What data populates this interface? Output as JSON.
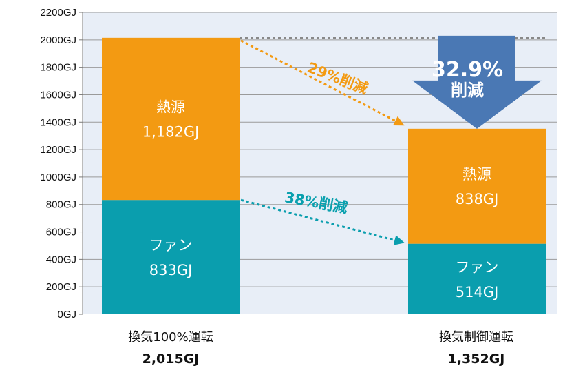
{
  "chart_data": {
    "type": "bar",
    "stacked": true,
    "ylim": [
      0,
      2200
    ],
    "yticks": [
      "0GJ",
      "200GJ",
      "400GJ",
      "600GJ",
      "800GJ",
      "1000GJ",
      "1200GJ",
      "1400GJ",
      "1600GJ",
      "1800GJ",
      "2000GJ",
      "2200GJ"
    ],
    "categories": [
      "換気100%運転",
      "換気制御運転"
    ],
    "category_totals": [
      "2,015GJ",
      "1,352GJ"
    ],
    "series": [
      {
        "name": "ファン",
        "values": [
          833,
          514
        ],
        "labels": [
          "833GJ",
          "514GJ"
        ],
        "color": "#0a9eae"
      },
      {
        "name": "熱源",
        "values": [
          1182,
          838
        ],
        "labels": [
          "1,182GJ",
          "838GJ"
        ],
        "color": "#f39a12"
      }
    ],
    "annotations": {
      "heat_reduction": "29%削減",
      "fan_reduction": "38%削減",
      "total_reduction_value": "32.9%",
      "total_reduction_word": "削減"
    },
    "colors": {
      "plot_bg": "#e8eef7",
      "grid": "#9a9a9a",
      "arrow_fill": "#4a78b4",
      "reference_line": "#888888"
    },
    "grid": true
  }
}
